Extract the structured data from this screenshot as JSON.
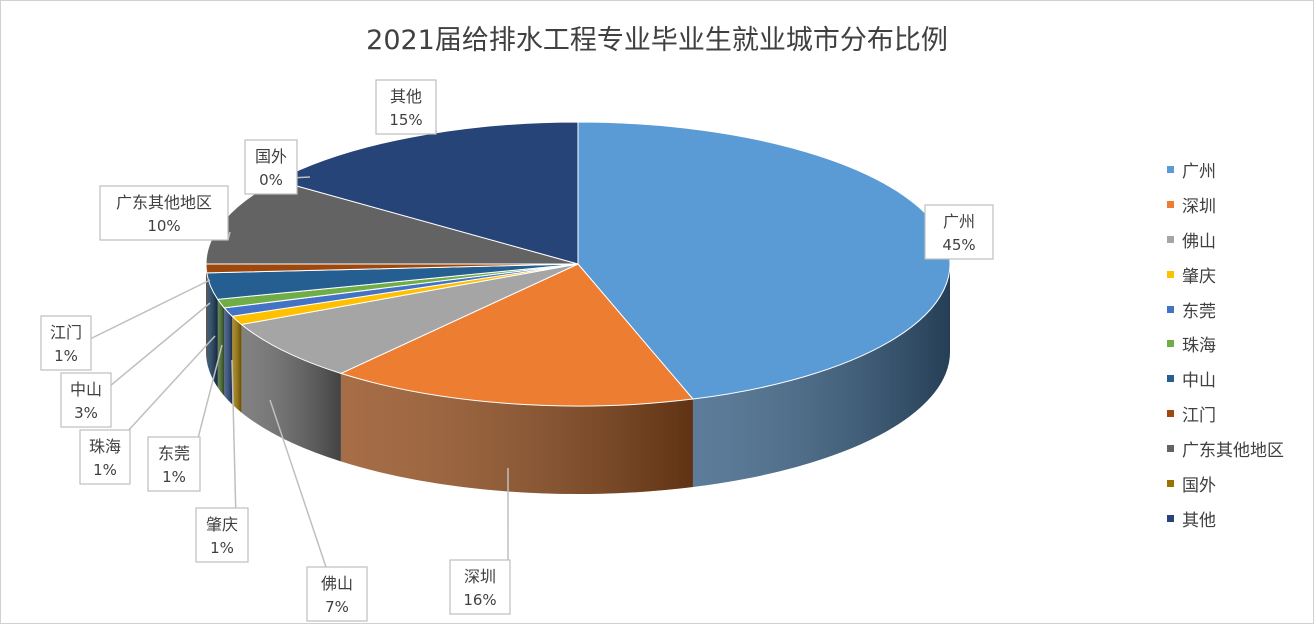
{
  "chart_data": {
    "type": "pie",
    "title": "2021届给排水工程专业毕业生就业城市分布比例",
    "categories": [
      "广州",
      "深圳",
      "佛山",
      "肇庆",
      "东莞",
      "珠海",
      "中山",
      "江门",
      "广东其他地区",
      "国外",
      "其他"
    ],
    "values": [
      45,
      16,
      7,
      1,
      1,
      1,
      3,
      1,
      10,
      0,
      15
    ],
    "value_labels": [
      "45%",
      "16%",
      "7%",
      "1%",
      "1%",
      "1%",
      "3%",
      "1%",
      "10%",
      "0%",
      "15%"
    ],
    "colors": [
      "#5b9bd5",
      "#ed7d31",
      "#a5a5a5",
      "#ffc000",
      "#4472c4",
      "#70ad47",
      "#255e91",
      "#9e480e",
      "#636363",
      "#997300",
      "#264478"
    ],
    "legend_position": "right",
    "style": "3d"
  }
}
